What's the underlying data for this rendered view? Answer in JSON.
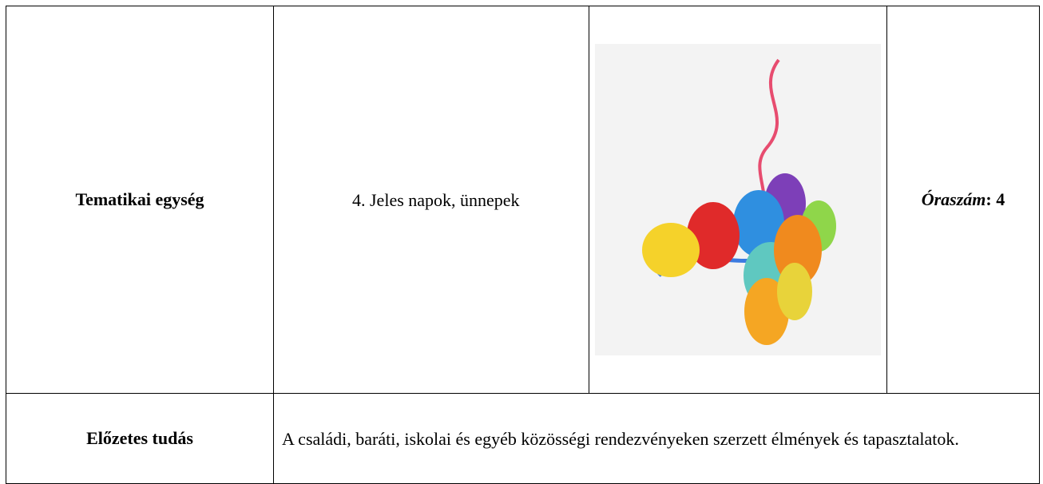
{
  "table": {
    "rows": [
      [
        "Tematikai egység",
        "4. Jeles napok, ünnepek",
        [
          "Óraszám",
          ": 4"
        ]
      ],
      [
        "Előzetes tudás",
        "A családi, baráti, iskolai és egyéb közösségi rendezvényeken szerzett élmények és tapasztalatok."
      ]
    ]
  }
}
